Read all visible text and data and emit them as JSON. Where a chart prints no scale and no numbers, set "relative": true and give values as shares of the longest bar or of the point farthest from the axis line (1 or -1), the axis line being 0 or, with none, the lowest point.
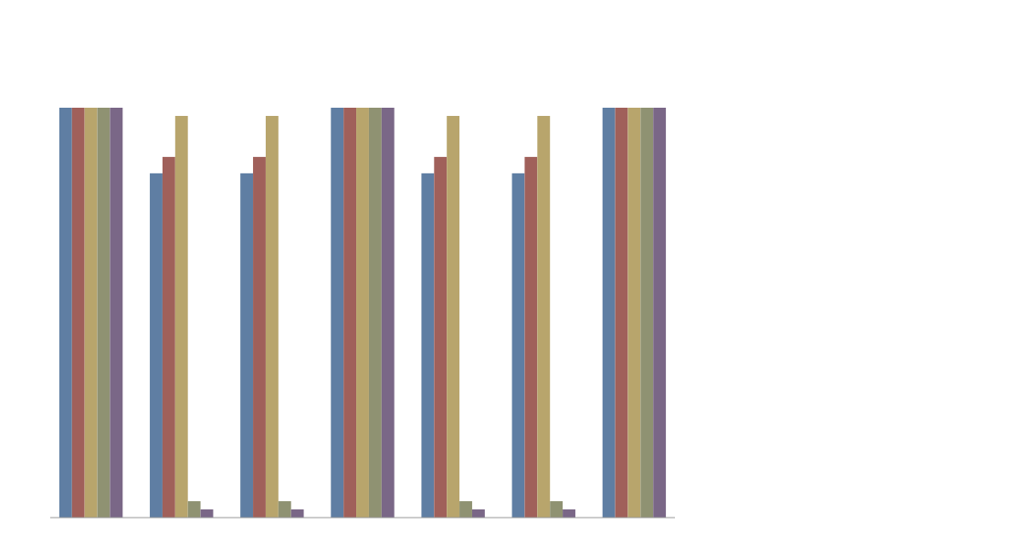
{
  "chart_data": {
    "type": "bar",
    "relative": true,
    "categories": [
      null,
      null,
      null,
      null,
      null,
      null,
      null
    ],
    "series": [
      {
        "color": "#5f7ea3",
        "values": [
          1,
          0.84,
          0.84,
          1,
          0.84,
          0.84,
          1
        ]
      },
      {
        "color": "#a0605a",
        "values": [
          1,
          0.88,
          0.88,
          1,
          0.88,
          0.88,
          1
        ]
      },
      {
        "color": "#b8a56c",
        "values": [
          1,
          0.98,
          0.98,
          1,
          0.98,
          0.98,
          1
        ]
      },
      {
        "color": "#8f9272",
        "values": [
          1,
          0.04,
          0.04,
          1,
          0.04,
          0.04,
          1
        ]
      },
      {
        "color": "#7a6787",
        "values": [
          1,
          0.02,
          0.02,
          1,
          0.02,
          0.02,
          1
        ]
      }
    ]
  }
}
